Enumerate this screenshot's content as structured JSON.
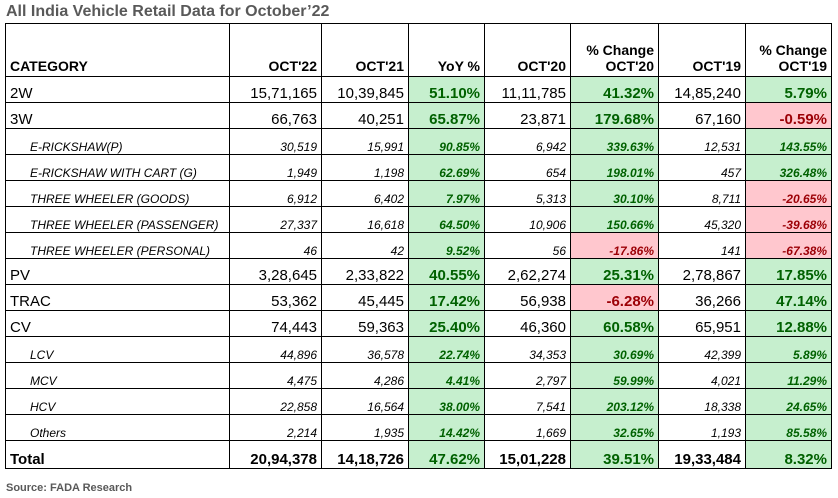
{
  "title": "All India Vehicle Retail Data for October’22",
  "source": "Source: FADA Research",
  "colors": {
    "positive_fill": "#c6efce",
    "positive_text": "#006100",
    "negative_fill": "#ffc7ce",
    "negative_text": "#9c0006"
  },
  "headers": [
    {
      "top": "",
      "bottom": "CATEGORY"
    },
    {
      "top": "",
      "bottom": "OCT'22"
    },
    {
      "top": "",
      "bottom": "OCT'21"
    },
    {
      "top": "",
      "bottom": "YoY %"
    },
    {
      "top": "",
      "bottom": "OCT'20"
    },
    {
      "top": "% Change",
      "bottom": "OCT'20"
    },
    {
      "top": "",
      "bottom": "OCT'19"
    },
    {
      "top": "% Change",
      "bottom": "OCT'19"
    }
  ],
  "rows": [
    {
      "level": "main",
      "cells": [
        "2W",
        "15,71,165",
        "10,39,845",
        "51.10%",
        "11,11,785",
        "41.32%",
        "14,85,240",
        "5.79%"
      ]
    },
    {
      "level": "main",
      "cells": [
        "3W",
        "66,763",
        "40,251",
        "65.87%",
        "23,871",
        "179.68%",
        "67,160",
        "-0.59%"
      ]
    },
    {
      "level": "sub",
      "cells": [
        "E-RICKSHAW(P)",
        "30,519",
        "15,991",
        "90.85%",
        "6,942",
        "339.63%",
        "12,531",
        "143.55%"
      ]
    },
    {
      "level": "sub",
      "cells": [
        "E-RICKSHAW WITH CART (G)",
        "1,949",
        "1,198",
        "62.69%",
        "654",
        "198.01%",
        "457",
        "326.48%"
      ]
    },
    {
      "level": "sub",
      "cells": [
        "THREE WHEELER (GOODS)",
        "6,912",
        "6,402",
        "7.97%",
        "5,313",
        "30.10%",
        "8,711",
        "-20.65%"
      ]
    },
    {
      "level": "sub",
      "cells": [
        "THREE WHEELER (PASSENGER)",
        "27,337",
        "16,618",
        "64.50%",
        "10,906",
        "150.66%",
        "45,320",
        "-39.68%"
      ]
    },
    {
      "level": "sub",
      "cells": [
        "THREE WHEELER (PERSONAL)",
        "46",
        "42",
        "9.52%",
        "56",
        "-17.86%",
        "141",
        "-67.38%"
      ]
    },
    {
      "level": "main",
      "cells": [
        "PV",
        "3,28,645",
        "2,33,822",
        "40.55%",
        "2,62,274",
        "25.31%",
        "2,78,867",
        "17.85%"
      ]
    },
    {
      "level": "main",
      "cells": [
        "TRAC",
        "53,362",
        "45,445",
        "17.42%",
        "56,938",
        "-6.28%",
        "36,266",
        "47.14%"
      ]
    },
    {
      "level": "main",
      "cells": [
        "CV",
        "74,443",
        "59,363",
        "25.40%",
        "46,360",
        "60.58%",
        "65,951",
        "12.88%"
      ]
    },
    {
      "level": "sub",
      "cells": [
        "LCV",
        "44,896",
        "36,578",
        "22.74%",
        "34,353",
        "30.69%",
        "42,399",
        "5.89%"
      ]
    },
    {
      "level": "sub",
      "cells": [
        "MCV",
        "4,475",
        "4,286",
        "4.41%",
        "2,797",
        "59.99%",
        "4,021",
        "11.29%"
      ]
    },
    {
      "level": "sub",
      "cells": [
        "HCV",
        "22,858",
        "16,564",
        "38.00%",
        "7,541",
        "203.12%",
        "18,338",
        "24.65%"
      ]
    },
    {
      "level": "sub",
      "cells": [
        "Others",
        "2,214",
        "1,935",
        "14.42%",
        "1,669",
        "32.65%",
        "1,193",
        "85.58%"
      ]
    },
    {
      "level": "total",
      "cells": [
        "Total",
        "20,94,378",
        "14,18,726",
        "47.62%",
        "15,01,228",
        "39.51%",
        "19,33,484",
        "8.32%"
      ]
    }
  ]
}
